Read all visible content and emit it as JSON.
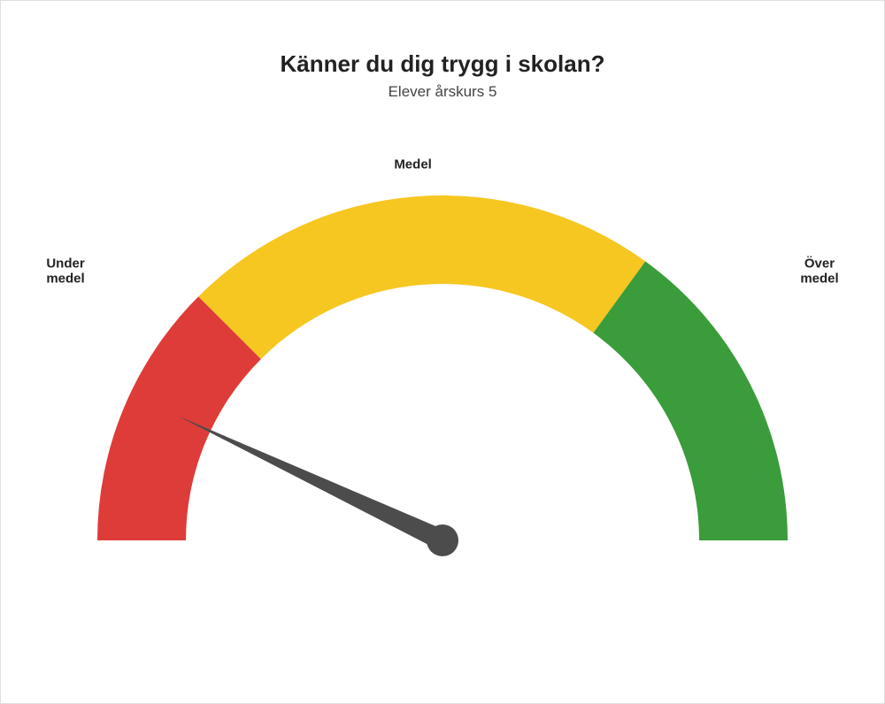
{
  "title": "Känner du dig trygg i skolan?",
  "subtitle": "Elever årskurs 5",
  "title_fontsize": 26,
  "subtitle_fontsize": 17,
  "title_color": "#222222",
  "subtitle_color": "#444444",
  "gauge": {
    "type": "gauge",
    "min": 0,
    "max": 100,
    "value": 14,
    "segments": [
      {
        "from": 0,
        "to": 25,
        "color": "#de3c39",
        "label": "Under\nmedel"
      },
      {
        "from": 25,
        "to": 70,
        "color": "#f6c721",
        "label": "Medel"
      },
      {
        "from": 70,
        "to": 100,
        "color": "#3a9c3a",
        "label": "Över\nmedel"
      }
    ],
    "outer_radius": 390,
    "inner_radius": 290,
    "needle_color": "#4c4c4c",
    "needle_length": 330,
    "needle_base_radius": 18,
    "background_color": "#ffffff",
    "label_fontsize": 15,
    "label_fontweight": 700,
    "label_color": "#222222",
    "label_offset": 36
  }
}
